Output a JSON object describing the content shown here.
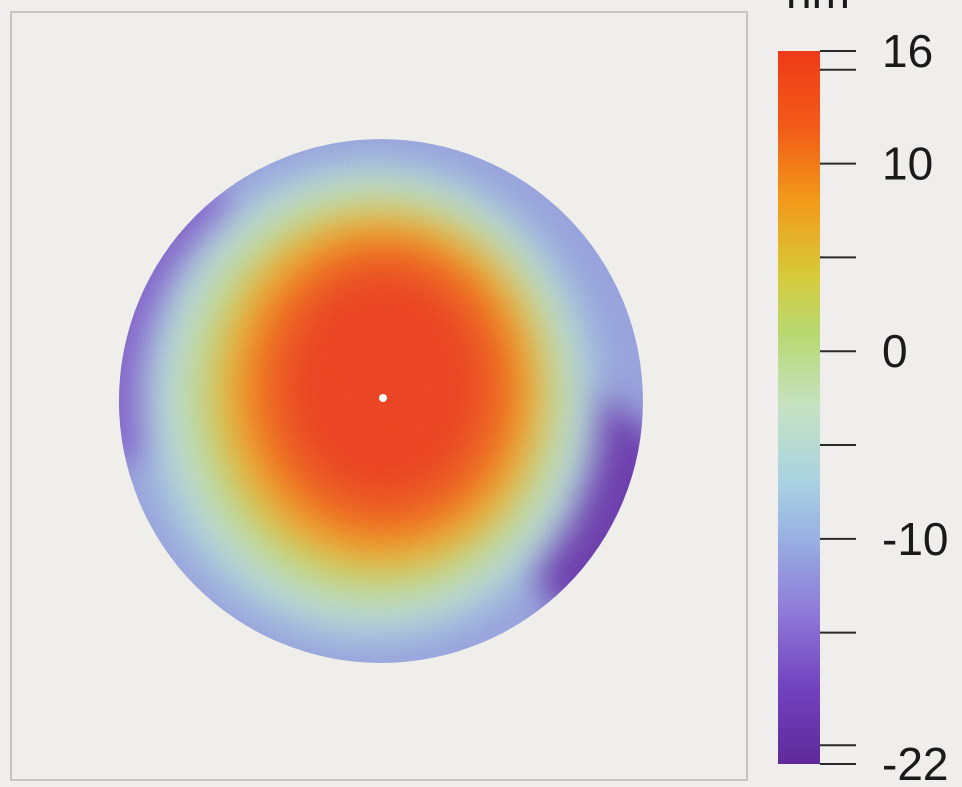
{
  "chart_data": {
    "type": "heatmap",
    "description_of_map": "surface height map",
    "colorbar": {
      "unit_label": "nm",
      "min": -22,
      "max": 16,
      "tick_labels": [
        {
          "value": 16,
          "label": "16"
        },
        {
          "value": 10,
          "label": "10"
        },
        {
          "value": 0,
          "label": "0"
        },
        {
          "value": -10,
          "label": "-10"
        },
        {
          "value": -22,
          "label": "-22"
        }
      ],
      "minor_tick_values": [
        15,
        5,
        -5,
        -15,
        -21
      ],
      "color_stops": [
        {
          "value": 16,
          "color": "#ef3a18"
        },
        {
          "value": 12,
          "color": "#f25a18"
        },
        {
          "value": 8,
          "color": "#f29a1a"
        },
        {
          "value": 4,
          "color": "#d6cb3a"
        },
        {
          "value": 1,
          "color": "#b8d870"
        },
        {
          "value": -3,
          "color": "#c6e2c3"
        },
        {
          "value": -7,
          "color": "#a9d2e2"
        },
        {
          "value": -10,
          "color": "#99b0e2"
        },
        {
          "value": -14,
          "color": "#8e78d8"
        },
        {
          "value": -18,
          "color": "#7142bf"
        },
        {
          "value": -22,
          "color": "#5e2a9a"
        }
      ]
    },
    "surface": {
      "peak_value": 16,
      "edge_min_value": -22,
      "contours": [
        {
          "value": 16,
          "rx": 0.37,
          "ry": 0.43,
          "cx": 0.01,
          "cy": -0.06
        },
        {
          "value": 12,
          "rx": 0.5,
          "ry": 0.56,
          "cx": 0.01,
          "cy": -0.05
        },
        {
          "value": 8,
          "rx": 0.6,
          "ry": 0.66,
          "cx": 0.0,
          "cy": -0.04
        },
        {
          "value": 3,
          "rx": 0.67,
          "ry": 0.73,
          "cx": -0.01,
          "cy": -0.03
        },
        {
          "value": 0,
          "rx": 0.72,
          "ry": 0.78,
          "cx": -0.02,
          "cy": -0.02
        },
        {
          "value": -4,
          "rx": 0.8,
          "ry": 0.86,
          "cx": -0.03,
          "cy": -0.01
        },
        {
          "value": -8,
          "rx": 0.88,
          "ry": 0.93,
          "cx": -0.04,
          "cy": 0.0
        }
      ],
      "edge_values": {
        "upper_left": -16,
        "lower_right": -20,
        "general_edge": -11
      }
    }
  }
}
